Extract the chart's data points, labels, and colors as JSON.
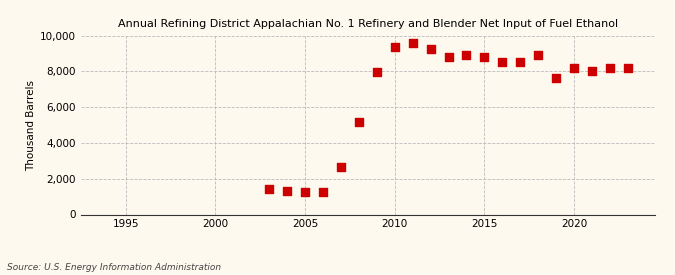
{
  "title": "Annual Refining District Appalachian No. 1 Refinery and Blender Net Input of Fuel Ethanol",
  "ylabel": "Thousand Barrels",
  "source": "Source: U.S. Energy Information Administration",
  "background_color": "#fef9ee",
  "data": {
    "years": [
      2003,
      2004,
      2005,
      2006,
      2007,
      2008,
      2009,
      2010,
      2011,
      2012,
      2013,
      2014,
      2015,
      2016,
      2017,
      2018,
      2019,
      2020,
      2021,
      2022,
      2023
    ],
    "values": [
      1400,
      1300,
      1250,
      1280,
      2650,
      5200,
      7950,
      9350,
      9600,
      9250,
      8800,
      8900,
      8800,
      8550,
      8550,
      8900,
      7650,
      8200,
      8050,
      8200,
      8200
    ]
  },
  "marker_color": "#cc0000",
  "marker_size": 28,
  "ylim": [
    0,
    10000
  ],
  "yticks": [
    0,
    2000,
    4000,
    6000,
    8000,
    10000
  ],
  "xlim": [
    1992.5,
    2024.5
  ],
  "xticks": [
    1995,
    2000,
    2005,
    2010,
    2015,
    2020
  ],
  "title_fontsize": 8.0,
  "ylabel_fontsize": 7.5,
  "tick_fontsize": 7.5,
  "source_fontsize": 6.5
}
